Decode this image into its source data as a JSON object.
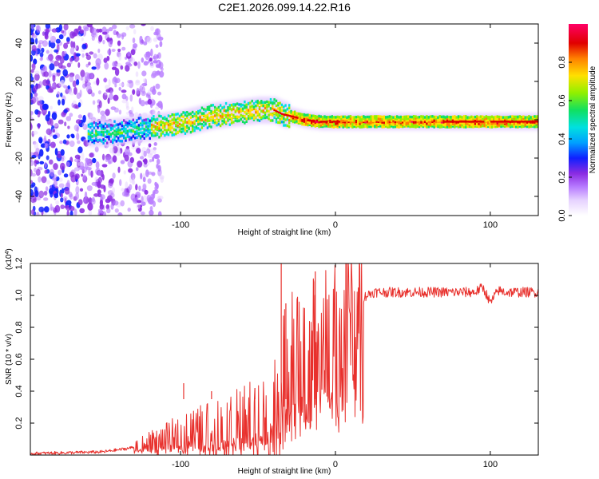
{
  "figure_title": "C2E1.2026.099.14.22.R16",
  "colors": {
    "line": "#e8302c",
    "colormap": [
      "#ffffff",
      "#e6d2ff",
      "#b77bff",
      "#8a2be2",
      "#5a10d8",
      "#1020ff",
      "#00a0ff",
      "#00e0e0",
      "#10e060",
      "#90f000",
      "#ffe000",
      "#ff8000",
      "#e00000",
      "#ff0066"
    ]
  },
  "chart_data": [
    {
      "type": "heatmap",
      "name": "spectrogram",
      "title": "",
      "xlabel": "Height of straight line (km)",
      "ylabel": "Frequency (Hz)",
      "xlim": [
        -197,
        131
      ],
      "ylim": [
        -50,
        50
      ],
      "x_ticks": [
        -100,
        0,
        100
      ],
      "y_ticks": [
        -40,
        -20,
        0,
        20,
        40
      ],
      "colorbar": {
        "label": "Normalized spectral amplitude",
        "range": [
          0,
          1
        ],
        "ticks": [
          0.0,
          0.2,
          0.4,
          0.6,
          0.8
        ]
      },
      "ridge": {
        "description": "main spectral ridge (peak frequency vs height)",
        "x": [
          -150,
          -140,
          -130,
          -120,
          -110,
          -100,
          -90,
          -80,
          -70,
          -60,
          -50,
          -40,
          -35,
          -30,
          -20,
          -10,
          0,
          20,
          40,
          60,
          80,
          100,
          131
        ],
        "y": [
          -7,
          -6,
          -5,
          -4,
          -3,
          -2,
          0,
          2,
          3,
          4,
          5,
          5,
          3,
          2,
          0,
          -1,
          -1,
          -1,
          -1,
          -1,
          -1,
          -1,
          -1
        ]
      }
    },
    {
      "type": "line",
      "name": "snr",
      "title": "",
      "xlabel": "Height of straight line (km)",
      "ylabel": "SNR (10 * v/v)",
      "y_multiplier": "(x10^4)",
      "xlim": [
        -197,
        131
      ],
      "ylim": [
        0,
        1.2
      ],
      "x_ticks": [
        -100,
        0,
        100
      ],
      "y_ticks": [
        0.2,
        0.4,
        0.6,
        0.8,
        1.0,
        1.2
      ],
      "series": [
        {
          "name": "SNR",
          "x": [
            -197,
            -170,
            -150,
            -135,
            -125,
            -115,
            -105,
            -95,
            -85,
            -75,
            -65,
            -55,
            -45,
            -40,
            -36,
            -34,
            -32,
            -30,
            -27,
            -24,
            -20,
            -15,
            -10,
            -5,
            0,
            5,
            10,
            15,
            20,
            25,
            30,
            40,
            50,
            60,
            70,
            80,
            90,
            95,
            98,
            100,
            105,
            110,
            120,
            131
          ],
          "y": [
            0.01,
            0.015,
            0.02,
            0.04,
            0.06,
            0.08,
            0.1,
            0.12,
            0.13,
            0.15,
            0.16,
            0.18,
            0.2,
            0.22,
            0.35,
            0.45,
            0.5,
            0.55,
            0.6,
            0.62,
            0.65,
            0.68,
            0.7,
            0.72,
            0.75,
            0.8,
            0.88,
            0.96,
            1.0,
            1.02,
            1.02,
            1.02,
            1.02,
            1.02,
            1.02,
            1.02,
            1.02,
            1.05,
            1.0,
            0.95,
            1.03,
            1.02,
            1.02,
            1.02
          ]
        }
      ],
      "spikes": {
        "x": [
          -35,
          -32,
          -13,
          -98,
          -80,
          -52
        ],
        "y": [
          1.2,
          0.95,
          1.15,
          0.45,
          0.4,
          0.42
        ]
      }
    }
  ]
}
